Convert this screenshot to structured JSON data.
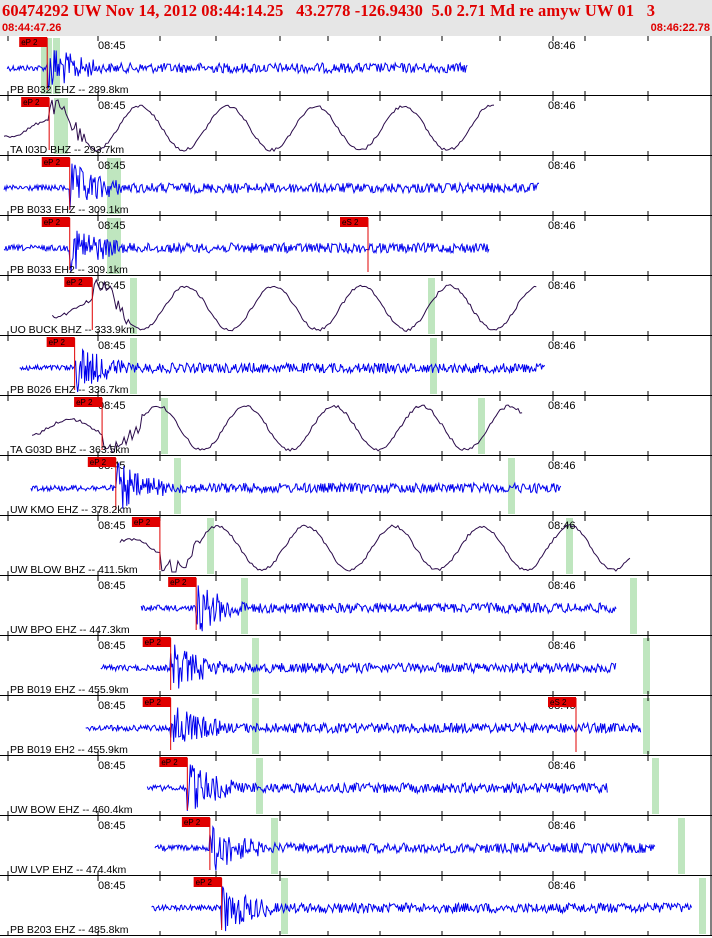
{
  "header": {
    "title": "60474292 UW Nov 14, 2012 08:44:14.25   43.2778 -126.9430  5.0 2.71 Md re amyw UW 01   3",
    "start_time": "08:44:47.26",
    "end_time": "08:46:22.78"
  },
  "colors": {
    "short_period": "#0000ee",
    "broadband": "#2a0a4a",
    "pick": "#e00000",
    "coda_window": "#bfe6bf",
    "axis": "#000000",
    "header_bg": "#e6e6e6",
    "header_text": "#e00000"
  },
  "chart_data": {
    "type": "seismogram",
    "time_axis": {
      "start": "08:44:47.26",
      "end": "08:46:22.78",
      "tick_labels": [
        "08:45",
        "08:46"
      ]
    },
    "traces": [
      {
        "label": "PB B032 EHZ -- 289.8km",
        "kind": "sp",
        "pick": "eP 2",
        "p": 0.4,
        "w": [
          0.37,
          0.45,
          0.33
        ],
        "gap": null
      },
      {
        "label": "TA I03D BHZ -- 293.7km",
        "kind": "bb",
        "pick": "eP 2",
        "p": 0.42,
        "w": [
          0.46,
          0.53
        ],
        "gap": null
      },
      {
        "label": "PB B033 EHZ -- 309.1km",
        "kind": "sp",
        "pick": "eP 2",
        "p": 0.63,
        "w": [
          0.99,
          1.06
        ],
        "gap": null
      },
      {
        "label": "PB B033 EH2 -- 309.1km",
        "kind": "sp",
        "pick": "eP 2",
        "p": 0.63,
        "w": [
          0.99,
          1.06
        ],
        "gap": null,
        "extra_pick": {
          "text": "eS 2",
          "t": 3.6
        }
      },
      {
        "label": "UO BUCK BHZ -- 333.9km",
        "kind": "bb",
        "pick": "eP 2",
        "p": 0.86,
        "w": [
          1.22,
          4.2
        ],
        "gap": null
      },
      {
        "label": "PB B026 EHZ -- 336.7km",
        "kind": "sp",
        "pick": "eP 2",
        "p": 0.68,
        "w": [
          1.22,
          4.22
        ],
        "gap": null
      },
      {
        "label": "TA G03D BHZ -- 363.5km",
        "kind": "bb",
        "pick": "eP 2",
        "p": 0.96,
        "w": [
          1.53,
          4.7
        ],
        "gap": null
      },
      {
        "label": "UW KMO EHZ -- 378.2km",
        "kind": "sp",
        "pick": "eP 2",
        "p": 1.1,
        "w": [
          1.66,
          5.0
        ],
        "gap": null
      },
      {
        "label": "UW BLOW BHZ -- 411.5km",
        "kind": "bb",
        "pick": "eP 2",
        "p": 1.55,
        "w": [
          1.99,
          5.58
        ],
        "gap": null
      },
      {
        "label": "UW BPO EHZ -- 447.3km",
        "kind": "sp",
        "pick": "eP 2",
        "p": 1.92,
        "w": [
          2.33,
          6.22
        ],
        "gap": null
      },
      {
        "label": "PB B019 EHZ -- 455.9km",
        "kind": "sp",
        "pick": "eP 2",
        "p": 1.66,
        "w": [
          2.44,
          6.35
        ],
        "gap": null
      },
      {
        "label": "PB B019 EH2 -- 455.9km",
        "kind": "sp",
        "pick": "eP 2",
        "p": 1.66,
        "w": [
          2.44,
          6.35
        ],
        "gap": null,
        "extra_pick": {
          "text": "eS 2",
          "t": 5.68
        }
      },
      {
        "label": "UW BOW EHZ -- 460.4km",
        "kind": "sp",
        "pick": "eP 2",
        "p": 1.83,
        "w": [
          2.48,
          6.44
        ],
        "gap": null
      },
      {
        "label": "UW LVP EHZ -- 474.4km",
        "kind": "sp",
        "pick": "eP 2",
        "p": 2.06,
        "w": [
          2.63,
          6.7
        ],
        "gap": null
      },
      {
        "label": "PB B203 EHZ -- 485.8km",
        "kind": "sp",
        "pick": "eP 2",
        "p": 2.18,
        "w": [
          2.73,
          6.91
        ],
        "gap": null
      }
    ]
  }
}
